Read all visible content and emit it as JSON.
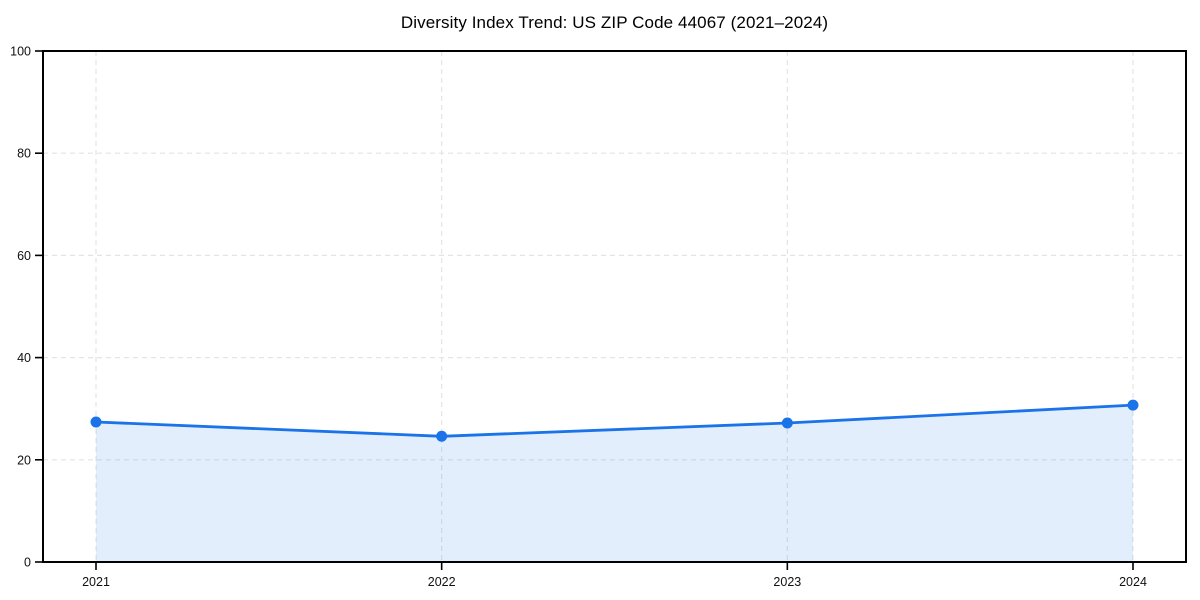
{
  "chart_data": {
    "type": "line",
    "title": "Diversity Index Trend: US ZIP Code 44067 (2021–2024)",
    "x": [
      "2021",
      "2022",
      "2023",
      "2024"
    ],
    "series": [
      {
        "name": "Diversity Index",
        "values": [
          27.4,
          24.6,
          27.2,
          30.7
        ]
      }
    ],
    "xlabel": "",
    "ylabel": "",
    "ylim": [
      0,
      100
    ],
    "yticks": [
      0,
      20,
      40,
      60,
      80,
      100
    ],
    "grid": "dashed-both-axes",
    "legend_position": "none",
    "area_fill": true,
    "line_color": "#1a73e8",
    "fill_opacity": 0.12,
    "grid_color": "#e4e4e4",
    "axis_color": "#000000",
    "tick_label_color": "#111111"
  }
}
